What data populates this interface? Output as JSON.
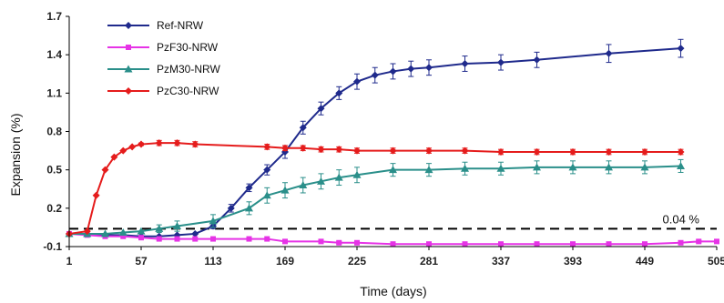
{
  "chart_data": {
    "type": "line",
    "xlabel": "Time (days)",
    "ylabel": "Expansion (%)",
    "xlim": [
      1,
      505
    ],
    "ylim": [
      -0.1,
      1.7
    ],
    "xticks": [
      "1",
      "57",
      "113",
      "169",
      "225",
      "281",
      "337",
      "393",
      "449",
      "505"
    ],
    "yticks": [
      "1.7",
      "1.4",
      "1.1",
      "0.8",
      "0.5",
      "0.2",
      "-0.1"
    ],
    "legend_position": "top-left",
    "threshold": {
      "value": 0.04,
      "label": "0.04 %"
    },
    "series": [
      {
        "name": "Ref-NRW",
        "color": "#1f2a8c",
        "marker": "diamond",
        "x": [
          1,
          15,
          29,
          43,
          57,
          71,
          85,
          99,
          113,
          127,
          141,
          155,
          169,
          183,
          197,
          211,
          225,
          239,
          253,
          267,
          281,
          309,
          337,
          365,
          421,
          477
        ],
        "y": [
          0.0,
          0.0,
          -0.01,
          -0.01,
          -0.02,
          -0.02,
          -0.01,
          0.0,
          0.06,
          0.2,
          0.36,
          0.5,
          0.64,
          0.83,
          0.98,
          1.1,
          1.19,
          1.24,
          1.27,
          1.29,
          1.3,
          1.33,
          1.34,
          1.36,
          1.41,
          1.45
        ],
        "err": [
          0,
          0,
          0,
          0,
          0,
          0,
          0,
          0,
          0.02,
          0.03,
          0.03,
          0.04,
          0.05,
          0.05,
          0.05,
          0.05,
          0.06,
          0.06,
          0.06,
          0.06,
          0.06,
          0.06,
          0.06,
          0.06,
          0.07,
          0.07
        ]
      },
      {
        "name": "PzF30-NRW",
        "color": "#e633e6",
        "marker": "square",
        "x": [
          1,
          15,
          29,
          43,
          57,
          71,
          85,
          99,
          113,
          141,
          155,
          169,
          197,
          211,
          225,
          253,
          281,
          309,
          337,
          365,
          393,
          421,
          449,
          477,
          491,
          505
        ],
        "y": [
          0.0,
          -0.01,
          -0.02,
          -0.02,
          -0.03,
          -0.04,
          -0.04,
          -0.04,
          -0.04,
          -0.04,
          -0.04,
          -0.06,
          -0.06,
          -0.07,
          -0.07,
          -0.08,
          -0.08,
          -0.08,
          -0.08,
          -0.08,
          -0.08,
          -0.08,
          -0.08,
          -0.07,
          -0.06,
          -0.06
        ],
        "err": [
          0,
          0,
          0,
          0,
          0,
          0,
          0,
          0,
          0,
          0,
          0,
          0.01,
          0.01,
          0.01,
          0.01,
          0.01,
          0.01,
          0.01,
          0.01,
          0.01,
          0.01,
          0.01,
          0.01,
          0.01,
          0.01,
          0.01
        ]
      },
      {
        "name": "PzM30-NRW",
        "color": "#2a8f8a",
        "marker": "triangle",
        "x": [
          1,
          15,
          29,
          43,
          57,
          71,
          85,
          113,
          141,
          155,
          169,
          183,
          197,
          211,
          225,
          253,
          281,
          309,
          337,
          365,
          393,
          421,
          449,
          477
        ],
        "y": [
          0.0,
          0.0,
          0.0,
          0.01,
          0.02,
          0.04,
          0.06,
          0.1,
          0.2,
          0.3,
          0.34,
          0.38,
          0.41,
          0.44,
          0.46,
          0.5,
          0.5,
          0.51,
          0.51,
          0.52,
          0.52,
          0.52,
          0.52,
          0.53
        ],
        "err": [
          0,
          0,
          0,
          0,
          0,
          0.03,
          0.04,
          0.05,
          0.05,
          0.06,
          0.06,
          0.06,
          0.06,
          0.06,
          0.06,
          0.05,
          0.05,
          0.05,
          0.05,
          0.05,
          0.05,
          0.05,
          0.05,
          0.05
        ]
      },
      {
        "name": "PzC30-NRW",
        "color": "#e51c1c",
        "marker": "diamond",
        "x": [
          1,
          15,
          22,
          29,
          36,
          43,
          50,
          57,
          71,
          85,
          99,
          155,
          169,
          183,
          197,
          211,
          225,
          253,
          281,
          309,
          337,
          365,
          393,
          421,
          449,
          477
        ],
        "y": [
          0.0,
          0.02,
          0.3,
          0.5,
          0.6,
          0.65,
          0.68,
          0.7,
          0.71,
          0.71,
          0.7,
          0.68,
          0.67,
          0.67,
          0.66,
          0.66,
          0.65,
          0.65,
          0.65,
          0.65,
          0.64,
          0.64,
          0.64,
          0.64,
          0.64,
          0.64
        ],
        "err": [
          0,
          0,
          0,
          0,
          0,
          0,
          0,
          0.01,
          0.02,
          0.02,
          0.02,
          0.02,
          0.02,
          0.02,
          0.02,
          0.02,
          0.02,
          0.02,
          0.02,
          0.02,
          0.02,
          0.02,
          0.02,
          0.02,
          0.02,
          0.02
        ]
      }
    ]
  }
}
